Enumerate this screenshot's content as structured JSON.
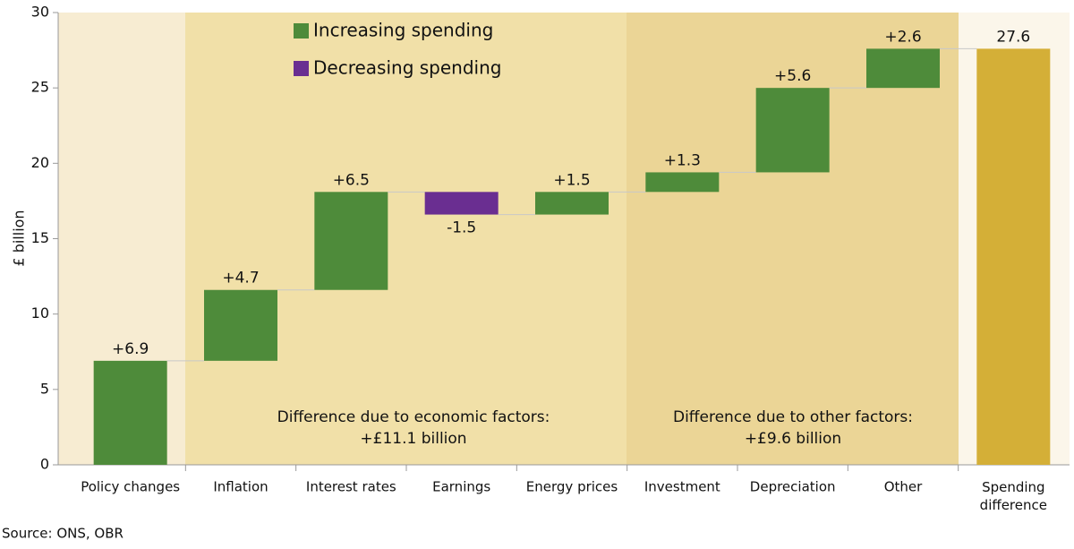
{
  "chart_data": {
    "type": "waterfall",
    "y_label": "£ billion",
    "categories": [
      "Policy changes",
      "Inflation",
      "Interest rates",
      "Earnings",
      "Energy prices",
      "Investment",
      "Depreciation",
      "Other",
      "Spending difference"
    ],
    "values": [
      6.9,
      4.7,
      6.5,
      -1.5,
      1.5,
      1.3,
      5.6,
      2.6,
      27.6
    ],
    "value_labels": [
      "+6.9",
      "+4.7",
      "+6.5",
      "-1.5",
      "+1.5",
      "+1.3",
      "+5.6",
      "+2.6",
      "27.6"
    ],
    "legend": [
      {
        "name": "Increasing spending",
        "color": "#4e8b3a"
      },
      {
        "name": "Decreasing spending",
        "color": "#6a2e91"
      }
    ],
    "total_color": "#d4af37",
    "ylim": [
      0,
      30
    ],
    "yticks": [
      0,
      5,
      10,
      15,
      20,
      25,
      30
    ],
    "annotations": [
      {
        "lines": [
          "Difference due to economic factors:",
          "+£11.1 billion"
        ]
      },
      {
        "lines": [
          "Difference due to other factors:",
          "+£9.6 billion"
        ]
      }
    ],
    "source": "Source: ONS, OBR"
  }
}
